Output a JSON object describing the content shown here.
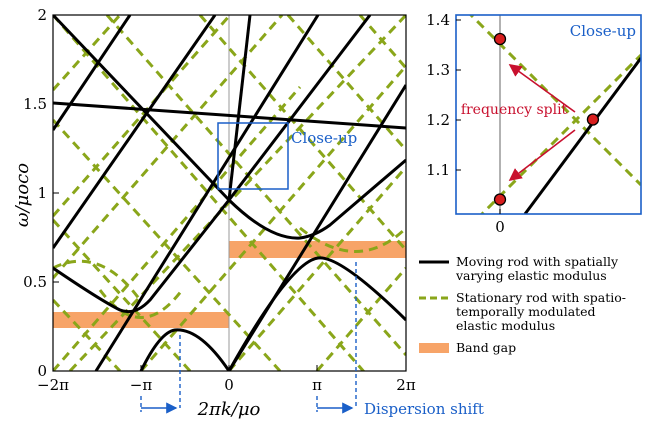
{
  "chart_data": [
    {
      "type": "line",
      "panel": "main",
      "xlabel": "2πk/μo",
      "ylabel": "ω/μoco",
      "xlim": [
        -6.2832,
        6.2832
      ],
      "ylim": [
        0,
        2
      ],
      "x_tick_labels": [
        "−2π",
        "−π",
        "0",
        "π",
        "2π"
      ],
      "y_tick_labels": [
        "0",
        "0.5",
        "1",
        "1.5",
        "2"
      ],
      "series": [
        {
          "name": "Moving rod with spatially varying elastic modulus",
          "style": "solid",
          "color": "#000000"
        },
        {
          "name": "Stationary rod with spatio-temporally modulated elastic modulus",
          "style": "dashed",
          "color": "#8aa61a"
        }
      ],
      "band_gaps": [
        {
          "x_range": [
            -6.2832,
            0
          ],
          "y_range": [
            0.235,
            0.315
          ]
        },
        {
          "x_range": [
            0,
            6.2832
          ],
          "y_range": [
            0.635,
            0.72
          ]
        }
      ],
      "closeup_box": {
        "x_range": [
          -0.4,
          2.1
        ],
        "y_range": [
          1.02,
          1.4
        ],
        "label": "Close-up"
      },
      "annotations": [
        {
          "text": "Dispersion shift",
          "color": "#1a5fc8"
        }
      ]
    },
    {
      "type": "scatter",
      "panel": "close-up",
      "title": "Close-up",
      "x_tick_labels": [
        "0"
      ],
      "y_tick_labels": [
        "1.1",
        "1.2",
        "1.3",
        "1.4"
      ],
      "ylim": [
        1.02,
        1.4
      ],
      "points": [
        {
          "x": 0,
          "y": 1.362
        },
        {
          "x": 0,
          "y": 1.041
        },
        {
          "x": 1.75,
          "y": 1.201
        }
      ],
      "annotations": [
        {
          "text": "frequency split",
          "color": "#c8102e"
        }
      ]
    }
  ],
  "legend": {
    "items": [
      {
        "style": "solid",
        "lines": [
          "Moving rod with spatially",
          "varying elastic modulus"
        ]
      },
      {
        "style": "dashed",
        "lines": [
          "Stationary rod with spatio-",
          "temporally modulated",
          "elastic modulus"
        ]
      },
      {
        "style": "patch",
        "lines": [
          "Band gap"
        ]
      }
    ]
  },
  "colors": {
    "solid": "#000000",
    "dashed": "#8aa61a",
    "band_gap": "#f7a468",
    "accent": "#1a5fc8",
    "split": "#c8102e",
    "marker_fill": "#d81e1e"
  }
}
